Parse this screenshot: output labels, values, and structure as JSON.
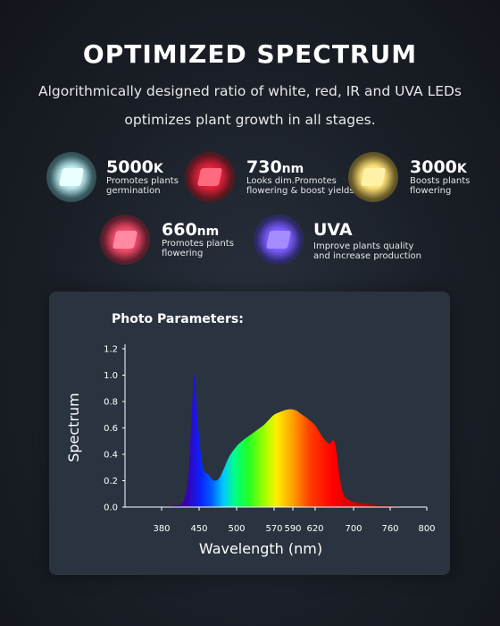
{
  "header": {
    "title": "OPTIMIZED SPECTRUM",
    "subtitle_line1": "Algorithmically designed ratio of white, red, IR and UVA LEDs",
    "subtitle_line2": "optimizes plant growth in all stages."
  },
  "leds": [
    {
      "value": "5000",
      "unit": "K",
      "desc1": "Promotes plants",
      "desc2": "germination",
      "color": "#bfeef0"
    },
    {
      "value": "730",
      "unit": "nm",
      "desc1": "Looks dim.Promotes",
      "desc2": "flowering & boost yields",
      "color": "#e0203a"
    },
    {
      "value": "3000",
      "unit": "K",
      "desc1": "Boosts plants",
      "desc2": "flowering",
      "color": "#ffe27a"
    },
    {
      "value": "660",
      "unit": "nm",
      "desc1": "Promotes plants",
      "desc2": "flowering",
      "color": "#f04a6a"
    },
    {
      "value": "UVA",
      "unit": "",
      "desc1": "Improve plants quality",
      "desc2": "and increase production",
      "color": "#7a5cff"
    }
  ],
  "panel": {
    "title": "Photo Parameters:"
  },
  "chart_data": {
    "type": "area",
    "xlabel": "Wavelength (nm)",
    "ylabel": "Spectrum",
    "xlim": [
      300,
      800
    ],
    "ylim": [
      0,
      1.2
    ],
    "x_ticks": [
      380,
      450,
      500,
      570,
      590,
      620,
      700,
      760,
      800
    ],
    "y_ticks": [
      0.0,
      0.2,
      0.4,
      0.6,
      0.8,
      1.0,
      1.2
    ],
    "x": [
      380,
      400,
      420,
      430,
      438,
      442,
      448,
      455,
      462,
      470,
      478,
      490,
      500,
      510,
      520,
      530,
      540,
      550,
      560,
      570,
      580,
      585,
      590,
      595,
      600,
      610,
      620,
      630,
      640,
      650,
      655,
      660,
      665,
      670,
      680,
      700,
      720,
      740,
      760,
      780
    ],
    "y": [
      0.0,
      0.01,
      0.04,
      0.25,
      0.85,
      0.99,
      0.62,
      0.3,
      0.25,
      0.2,
      0.23,
      0.38,
      0.46,
      0.5,
      0.53,
      0.56,
      0.59,
      0.62,
      0.66,
      0.7,
      0.73,
      0.74,
      0.74,
      0.73,
      0.71,
      0.67,
      0.62,
      0.56,
      0.51,
      0.48,
      0.5,
      0.5,
      0.4,
      0.25,
      0.09,
      0.04,
      0.025,
      0.015,
      0.01,
      0.0
    ],
    "grid": false
  }
}
